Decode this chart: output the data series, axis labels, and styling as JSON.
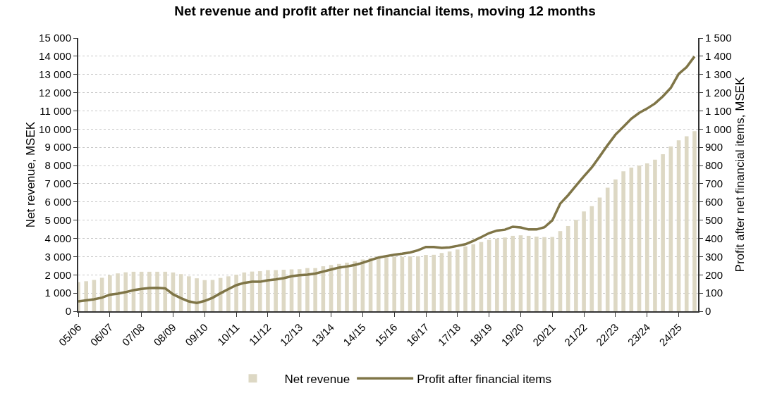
{
  "chart_data": {
    "type": "bar",
    "title": "Net revenue and profit after net financial items, moving 12 months",
    "ylabel": "Net revenue, MSEK",
    "y2label": "Profit after net financial items, MSEK",
    "categories": [
      "05/06",
      null,
      null,
      null,
      "06/07",
      null,
      null,
      null,
      "07/08",
      null,
      null,
      null,
      "08/09",
      null,
      null,
      null,
      "09/10",
      null,
      null,
      null,
      "10/11",
      null,
      null,
      null,
      "11/12",
      null,
      null,
      null,
      "12/13",
      null,
      null,
      null,
      "13/14",
      null,
      null,
      null,
      "14/15",
      null,
      null,
      null,
      "15/16",
      null,
      null,
      null,
      "16/17",
      null,
      null,
      null,
      "17/18",
      null,
      null,
      null,
      "18/19",
      null,
      null,
      null,
      "19/20",
      null,
      null,
      null,
      "20/21",
      null,
      null,
      null,
      "21/22",
      null,
      null,
      null,
      "22/23",
      null,
      null,
      null,
      "23/24",
      null,
      null,
      null,
      "24/25",
      null,
      null
    ],
    "series": [
      {
        "name": "Net revenue",
        "color": "#ddd8c4",
        "values": [
          1600,
          1650,
          1720,
          1840,
          1980,
          2080,
          2140,
          2170,
          2170,
          2170,
          2170,
          2170,
          2130,
          2040,
          1920,
          1810,
          1710,
          1720,
          1830,
          1920,
          2010,
          2130,
          2180,
          2200,
          2260,
          2260,
          2280,
          2300,
          2310,
          2370,
          2370,
          2470,
          2540,
          2600,
          2670,
          2740,
          2840,
          2930,
          2970,
          2980,
          2990,
          2990,
          3010,
          3020,
          3090,
          3100,
          3200,
          3280,
          3390,
          3560,
          3680,
          3800,
          3920,
          3990,
          4050,
          4140,
          4170,
          4140,
          4100,
          4070,
          4080,
          4400,
          4680,
          5020,
          5480,
          5770,
          6240,
          6780,
          7240,
          7680,
          7890,
          8000,
          8120,
          8320,
          8620,
          9050,
          9380,
          9610,
          9890
        ]
      },
      {
        "name": "Profit after financial items",
        "type": "line",
        "axis": "y2",
        "color": "#7f7547",
        "line_style": "solid",
        "values": [
          54,
          60,
          66,
          75,
          91,
          97,
          105,
          116,
          123,
          128,
          129,
          126,
          93,
          72,
          54,
          46,
          57,
          74,
          99,
          122,
          143,
          156,
          162,
          162,
          170,
          175,
          182,
          192,
          198,
          201,
          207,
          218,
          229,
          240,
          246,
          254,
          266,
          281,
          295,
          303,
          310,
          316,
          323,
          335,
          353,
          353,
          348,
          351,
          359,
          368,
          386,
          407,
          429,
          443,
          448,
          464,
          460,
          449,
          449,
          461,
          499,
          591,
          637,
          690,
          741,
          790,
          850,
          912,
          970,
          1013,
          1057,
          1089,
          1113,
          1141,
          1180,
          1227,
          1303,
          1340,
          1399
        ]
      }
    ],
    "ylim": [
      0,
      15000
    ],
    "yticks": [
      0,
      {
        "value": 1000,
        "label": "1 000"
      },
      {
        "value": 2000,
        "label": "2 000"
      },
      {
        "value": 3000,
        "label": "3 000"
      },
      {
        "value": 4000,
        "label": "4 000"
      },
      {
        "value": 5000,
        "label": "5 000"
      },
      {
        "value": 6000,
        "label": "6 000"
      },
      {
        "value": 7000,
        "label": "7 000"
      },
      {
        "value": 8000,
        "label": "8 000"
      },
      {
        "value": 9000,
        "label": "9 000"
      },
      {
        "value": 10000,
        "label": "10 000"
      },
      {
        "value": 11000,
        "label": "11 000"
      },
      {
        "value": 12000,
        "label": "12 000"
      },
      {
        "value": 13000,
        "label": "13 000"
      },
      {
        "value": 14000,
        "label": "14 000"
      },
      {
        "value": 15000,
        "label": "15 000"
      }
    ],
    "y2lim": [
      0,
      1500
    ],
    "y2ticks": [
      0,
      100,
      200,
      300,
      400,
      500,
      600,
      700,
      800,
      900,
      {
        "value": 1000,
        "label": "1 000"
      },
      {
        "value": 1100,
        "label": "1 100"
      },
      {
        "value": 1200,
        "label": "1 200"
      },
      {
        "value": 1300,
        "label": "1 300"
      },
      {
        "value": 1400,
        "label": "1 400"
      },
      {
        "value": 1500,
        "label": "1 500"
      }
    ],
    "grid": "y",
    "legend": "bottom"
  }
}
